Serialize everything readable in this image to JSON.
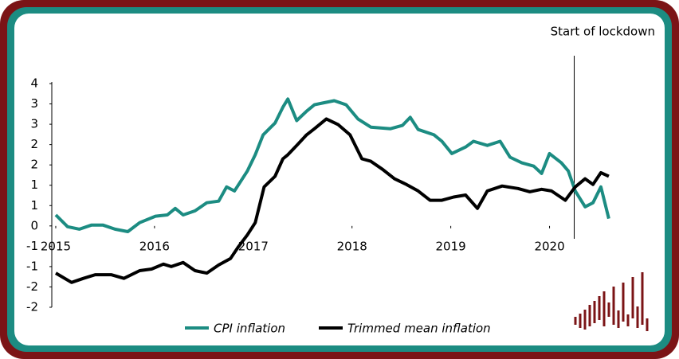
{
  "chart_data": {
    "type": "line",
    "xlim": [
      2014.96,
      2020.73
    ],
    "xticks": [
      2015,
      2016,
      2017,
      2018,
      2019,
      2020
    ],
    "ylim": [
      -2,
      3.5
    ],
    "yticks": [
      {
        "value": 3.5,
        "label": "4"
      },
      {
        "value": 3,
        "label": "3"
      },
      {
        "value": 2.5,
        "label": "3"
      },
      {
        "value": 2,
        "label": "2"
      },
      {
        "value": 1.5,
        "label": "2"
      },
      {
        "value": 1,
        "label": "1"
      },
      {
        "value": 0.5,
        "label": "1"
      },
      {
        "value": 0,
        "label": "0"
      },
      {
        "value": -0.5,
        "label": "-1"
      },
      {
        "value": -1,
        "label": "-1"
      },
      {
        "value": -1.5,
        "label": "-2"
      },
      {
        "value": -2,
        "label": "-2"
      }
    ],
    "annotations": [
      {
        "text": "Start of lockdown",
        "x": 2020.25
      }
    ],
    "series": [
      {
        "name": "CPI inflation",
        "color": "#1c8c82",
        "x": [
          2015.0,
          2015.12,
          2015.24,
          2015.36,
          2015.48,
          2015.6,
          2015.73,
          2015.85,
          2016.01,
          2016.13,
          2016.21,
          2016.29,
          2016.41,
          2016.53,
          2016.65,
          2016.73,
          2016.81,
          2016.94,
          2017.02,
          2017.1,
          2017.22,
          2017.3,
          2017.35,
          2017.44,
          2017.54,
          2017.62,
          2017.7,
          2017.82,
          2017.94,
          2018.06,
          2018.19,
          2018.39,
          2018.51,
          2018.59,
          2018.67,
          2018.83,
          2018.91,
          2019.01,
          2019.15,
          2019.23,
          2019.37,
          2019.5,
          2019.6,
          2019.72,
          2019.84,
          2019.92,
          2020.0,
          2020.12,
          2020.19,
          2020.26,
          2020.36,
          2020.44,
          2020.52,
          2020.6
        ],
        "values": [
          0.27,
          -0.02,
          -0.08,
          0.02,
          0.02,
          -0.08,
          -0.14,
          0.08,
          0.24,
          0.27,
          0.43,
          0.27,
          0.37,
          0.57,
          0.61,
          0.96,
          0.86,
          1.35,
          1.75,
          2.24,
          2.53,
          2.92,
          3.12,
          2.59,
          2.82,
          2.98,
          3.02,
          3.08,
          2.98,
          2.63,
          2.43,
          2.39,
          2.47,
          2.67,
          2.37,
          2.24,
          2.08,
          1.78,
          1.94,
          2.08,
          1.98,
          2.08,
          1.69,
          1.55,
          1.47,
          1.29,
          1.78,
          1.55,
          1.35,
          0.86,
          0.47,
          0.57,
          0.96,
          0.18
        ]
      },
      {
        "name": "Trimmed mean inflation",
        "color": "#000000",
        "x": [
          2015.0,
          2015.16,
          2015.28,
          2015.4,
          2015.56,
          2015.69,
          2015.85,
          2015.97,
          2016.09,
          2016.17,
          2016.29,
          2016.41,
          2016.53,
          2016.65,
          2016.77,
          2016.85,
          2016.94,
          2017.02,
          2017.11,
          2017.22,
          2017.3,
          2017.35,
          2017.44,
          2017.54,
          2017.62,
          2017.74,
          2017.86,
          2017.98,
          2018.1,
          2018.19,
          2018.31,
          2018.43,
          2018.55,
          2018.67,
          2018.79,
          2018.91,
          2019.03,
          2019.15,
          2019.27,
          2019.37,
          2019.52,
          2019.68,
          2019.8,
          2019.92,
          2020.02,
          2020.16,
          2020.26,
          2020.36,
          2020.44,
          2020.52,
          2020.6
        ],
        "values": [
          -1.16,
          -1.39,
          -1.29,
          -1.2,
          -1.2,
          -1.29,
          -1.1,
          -1.06,
          -0.94,
          -1.0,
          -0.9,
          -1.1,
          -1.16,
          -0.96,
          -0.8,
          -0.51,
          -0.22,
          0.08,
          0.96,
          1.22,
          1.65,
          1.75,
          1.98,
          2.24,
          2.39,
          2.63,
          2.49,
          2.24,
          1.65,
          1.59,
          1.39,
          1.16,
          1.02,
          0.86,
          0.63,
          0.63,
          0.71,
          0.76,
          0.43,
          0.86,
          0.98,
          0.92,
          0.84,
          0.9,
          0.86,
          0.63,
          0.96,
          1.16,
          1.02,
          1.31,
          1.22
        ]
      }
    ]
  }
}
